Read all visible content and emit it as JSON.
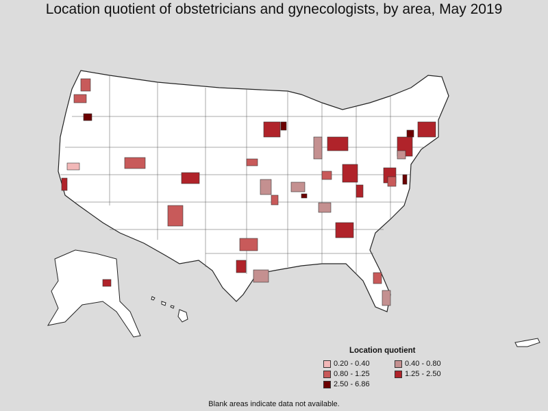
{
  "title": "Location quotient of obstetricians and gynecologists, by area, May 2019",
  "legend": {
    "title": "Location quotient",
    "items": [
      {
        "label": "0.20 - 0.40",
        "color": "#f2b8b8"
      },
      {
        "label": "0.40 - 0.80",
        "color": "#c49090"
      },
      {
        "label": "0.80 - 1.25",
        "color": "#c85a5a"
      },
      {
        "label": "1.25 - 2.50",
        "color": "#b0232a"
      },
      {
        "label": "2.50 - 6.86",
        "color": "#6b0000"
      }
    ]
  },
  "footnote": "Blank areas indicate data not available."
}
